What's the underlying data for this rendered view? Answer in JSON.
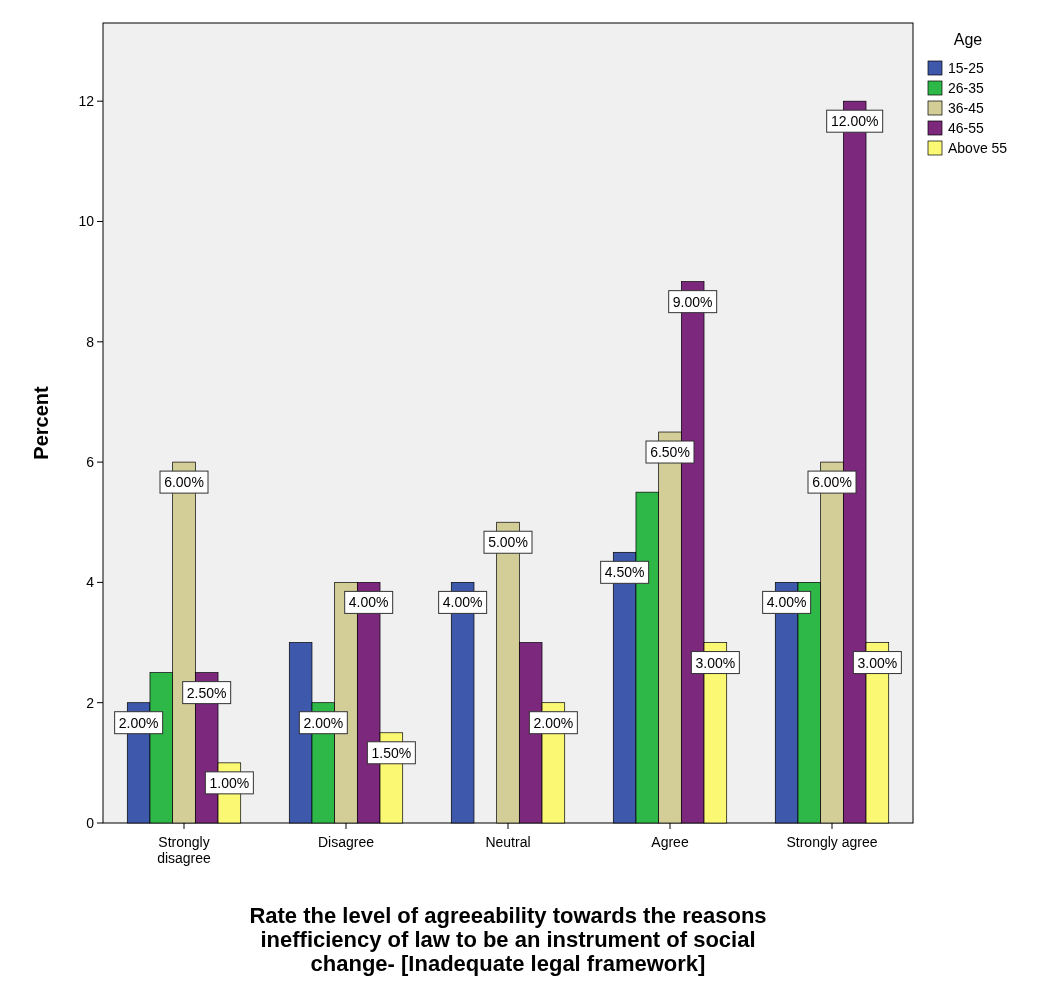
{
  "chart_data": {
    "type": "bar",
    "xlabel": "Rate the level of agreeability towards the reasons inefficiency of law to be an instrument of social change- [Inadequate legal framework]",
    "ylabel": "Percent",
    "legend_title": "Age",
    "categories": [
      "Strongly disagree",
      "Disagree",
      "Neutral",
      "Agree",
      "Strongly agree"
    ],
    "series": [
      {
        "name": "15-25",
        "color": "#3e58ac",
        "values": [
          2,
          3,
          4,
          4.5,
          4
        ],
        "value_labels": [
          "2.00%",
          null,
          "4.00%",
          "4.50%",
          "4.00%"
        ]
      },
      {
        "name": "26-35",
        "color": "#2eb848",
        "values": [
          2.5,
          2,
          null,
          5.5,
          4
        ],
        "value_labels": [
          null,
          "2.00%",
          null,
          null,
          null
        ]
      },
      {
        "name": "36-45",
        "color": "#d3ce97",
        "values": [
          6,
          4,
          5,
          6.5,
          6
        ],
        "value_labels": [
          "6.00%",
          null,
          "5.00%",
          "6.50%",
          "6.00%"
        ]
      },
      {
        "name": "46-55",
        "color": "#7c287d",
        "values": [
          2.5,
          4,
          3,
          9,
          12
        ],
        "value_labels": [
          "2.50%",
          "4.00%",
          null,
          "9.00%",
          "12.00%"
        ]
      },
      {
        "name": "Above 55",
        "color": "#fbf873",
        "values": [
          1,
          1.5,
          2,
          3,
          3
        ],
        "value_labels": [
          "1.00%",
          "1.50%",
          "2.00%",
          "3.00%",
          "3.00%"
        ]
      }
    ],
    "ylim": [
      0,
      13.3
    ],
    "yticks": [
      0,
      2,
      4,
      6,
      8,
      10,
      12
    ],
    "grid": false,
    "legend": "top right"
  }
}
